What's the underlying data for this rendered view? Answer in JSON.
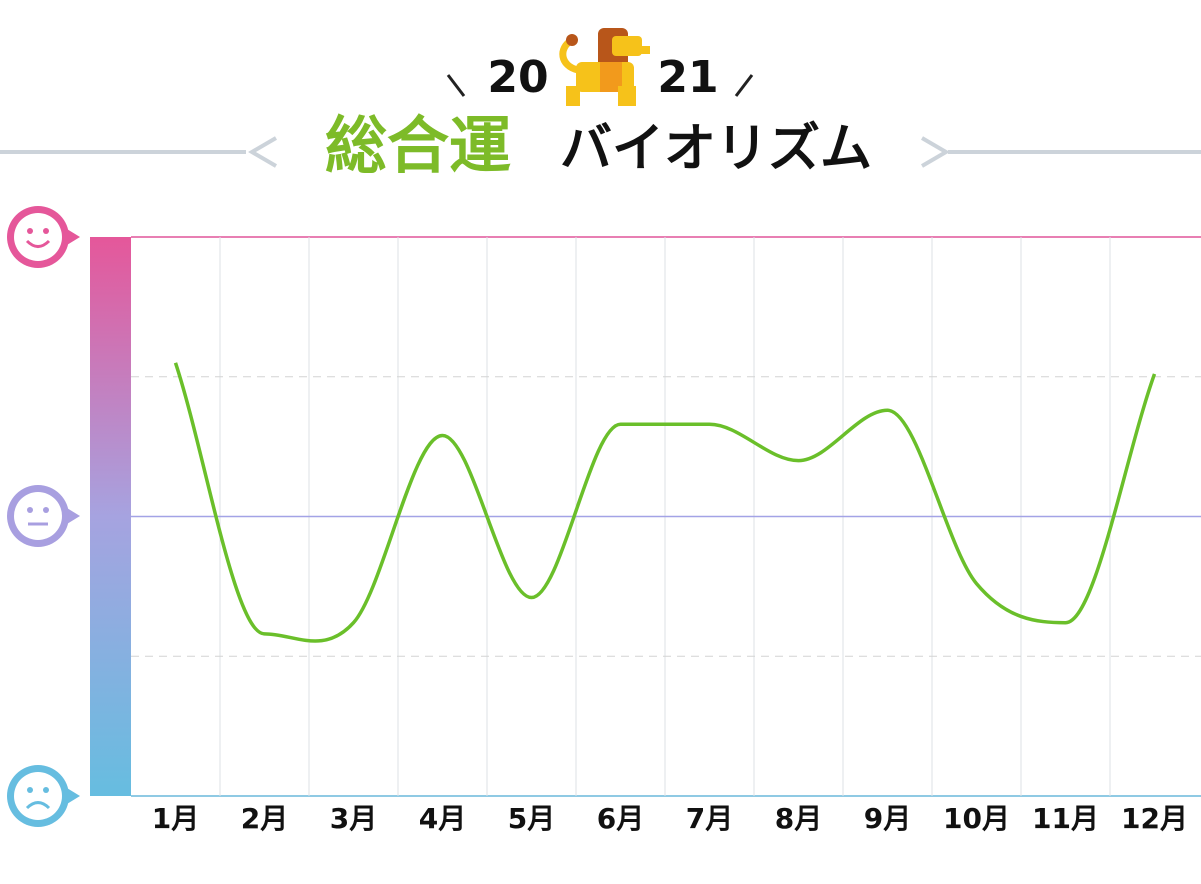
{
  "chart_data": {
    "type": "line",
    "year_parts": [
      "20",
      "21"
    ],
    "title_main": "総合運",
    "title_sub": "バイオリズム",
    "categories": [
      "1月",
      "2月",
      "3月",
      "4月",
      "5月",
      "6月",
      "7月",
      "8月",
      "9月",
      "10月",
      "11月",
      "12月"
    ],
    "values": [
      55,
      -42,
      -38,
      29,
      -29,
      33,
      33,
      20,
      38,
      -24,
      -38,
      51
    ],
    "color": "#6abf2a",
    "ylim": [
      -100,
      100
    ],
    "yticks": [
      -50,
      0,
      50
    ],
    "grid": true
  }
}
